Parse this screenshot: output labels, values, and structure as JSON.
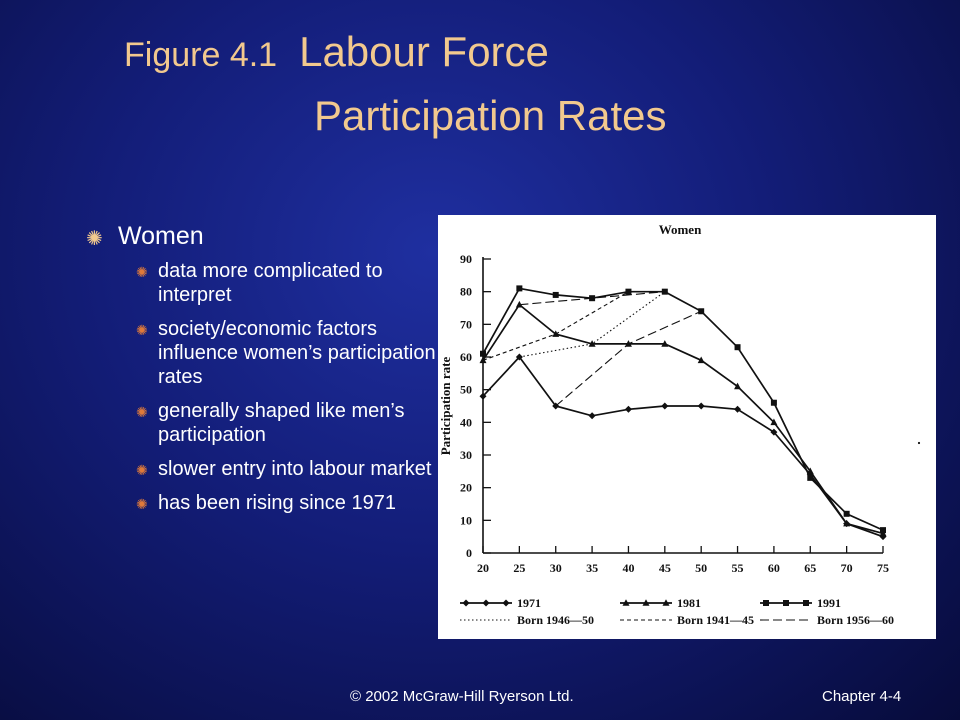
{
  "slide": {
    "figure_label": "Figure 4.1",
    "title_line1": "Labour Force",
    "title_line2": "Participation Rates"
  },
  "bullets": {
    "main": "Women",
    "items": [
      "data more complicated to interpret",
      "society/economic factors influence women’s participation rates",
      "generally shaped like men’s participation",
      "slower entry into labour market",
      "has been rising since 1971"
    ]
  },
  "footer": {
    "copyright": "© 2002 McGraw-Hill Ryerson Ltd.",
    "chapter": "Chapter 4-4"
  },
  "colors": {
    "title": "#f2c98e",
    "bullet_main": "#f2c98e",
    "bullet_sub": "#e07a3a",
    "line": "#111111"
  },
  "chart_data": {
    "type": "line",
    "title": "Women",
    "ylabel": "Participation rate",
    "xlabel": "",
    "x": [
      20,
      25,
      30,
      35,
      40,
      45,
      50,
      55,
      60,
      65,
      70,
      75
    ],
    "xlim": [
      20,
      75
    ],
    "ylim": [
      0,
      90
    ],
    "yticks": [
      0,
      10,
      20,
      30,
      40,
      50,
      60,
      70,
      80,
      90
    ],
    "grid": false,
    "legend_position": "bottom",
    "series": [
      {
        "name": "1971",
        "style": "solid",
        "marker": "diamond",
        "values": [
          48,
          60,
          45,
          42,
          44,
          45,
          45,
          44,
          37,
          24,
          9,
          5
        ]
      },
      {
        "name": "1981",
        "style": "solid",
        "marker": "triangle",
        "values": [
          59,
          76,
          67,
          64,
          64,
          64,
          59,
          51,
          40,
          25,
          9,
          6
        ]
      },
      {
        "name": "1991",
        "style": "solid",
        "marker": "square",
        "values": [
          61,
          81,
          79,
          78,
          80,
          80,
          74,
          63,
          46,
          23,
          12,
          7
        ]
      },
      {
        "name": "Born 1946—50",
        "style": "dotted",
        "points": [
          [
            25,
            60
          ],
          [
            35,
            64
          ],
          [
            45,
            80
          ]
        ]
      },
      {
        "name": "Born 1941—45",
        "style": "dashed-short",
        "points": [
          [
            20,
            59
          ],
          [
            30,
            67
          ],
          [
            40,
            80
          ]
        ]
      },
      {
        "name": "Born 1956—60",
        "style": "dashed-long",
        "points": [
          [
            25,
            76
          ],
          [
            35,
            78
          ],
          [
            45,
            80
          ]
        ]
      },
      {
        "name": "Born 1956—60",
        "style": "dashed-long",
        "points": [
          [
            30,
            45
          ],
          [
            40,
            64
          ],
          [
            50,
            74
          ]
        ]
      }
    ]
  }
}
